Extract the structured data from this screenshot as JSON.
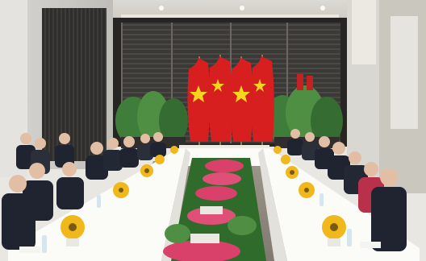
{
  "scene": {
    "subject": "meeting-room",
    "flags": [
      "vietnam-flag",
      "china-flag",
      "vietnam-flag",
      "china-flag"
    ],
    "colors": {
      "flag_red": "#d71f1f",
      "flag_star": "#f7d51c",
      "tablecloth": "#fbfbf8",
      "carpet": "#8f8a80",
      "suit": "#1f2430",
      "plants": "#3f7d3a",
      "roses": "#d9416a",
      "sunflowers": "#f0b81a"
    }
  }
}
